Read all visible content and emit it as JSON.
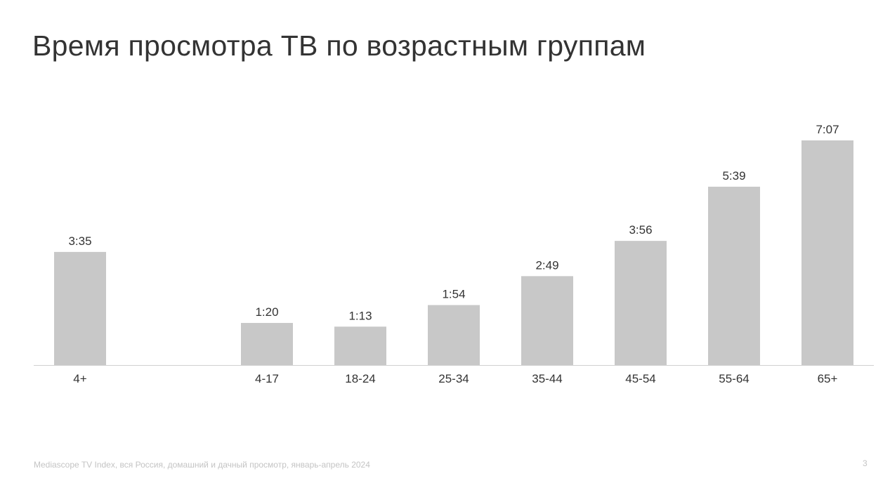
{
  "title": "Время просмотра ТВ по возрастным группам",
  "footer": "Mediascope TV Index, вся Россия, домашний и дачный просмотр, январь-апрель 2024",
  "page_number": "3",
  "colors": {
    "bar": "#c8c8c8",
    "axis": "#d0d0d0",
    "text": "#333333"
  },
  "chart_data": {
    "type": "bar",
    "categories": [
      "4+",
      "4-17",
      "18-24",
      "25-34",
      "35-44",
      "45-54",
      "55-64",
      "65+"
    ],
    "values": [
      215,
      80,
      73,
      114,
      169,
      236,
      339,
      427
    ],
    "value_unit": "minutes",
    "data_labels": [
      "3:35",
      "1:20",
      "1:13",
      "1:54",
      "2:49",
      "3:56",
      "5:39",
      "7:07"
    ],
    "title": "Время просмотра ТВ по возрастным группам",
    "xlabel": "",
    "ylabel": "",
    "ylim": [
      0,
      427
    ],
    "grid": false,
    "legend": "none"
  }
}
